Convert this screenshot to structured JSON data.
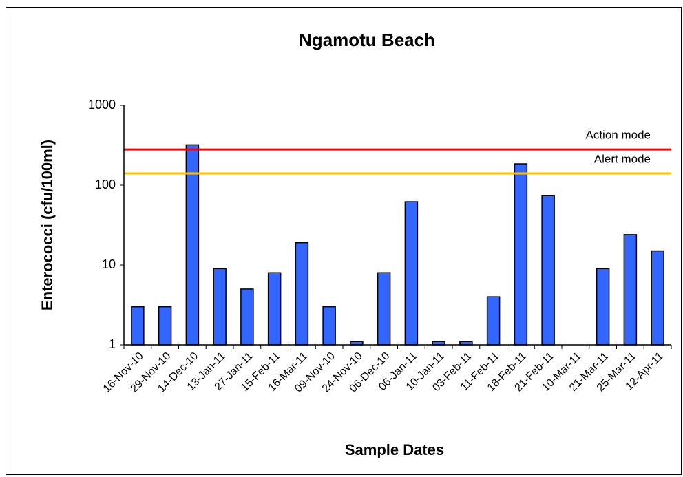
{
  "chart_data": {
    "type": "bar",
    "title": "Ngamotu Beach",
    "x_label": "Sample Dates",
    "y_label": "Enterococci (cfu/100ml)",
    "categories": [
      "16-Nov-10",
      "29-Nov-10",
      "14-Dec-10",
      "13-Jan-11",
      "27-Jan-11",
      "15-Feb-11",
      "16-Mar-11",
      "09-Nov-10",
      "24-Nov-10",
      "06-Dec-10",
      "06-Jan-11",
      "10-Jan-11",
      "03-Feb-11",
      "11-Feb-11",
      "18-Feb-11",
      "21-Feb-11",
      "10-Mar-11",
      "21-Mar-11",
      "25-Mar-11",
      "12-Apr-11"
    ],
    "values": [
      3,
      3,
      320,
      9,
      5,
      8,
      19,
      3,
      1.1,
      8,
      62,
      1.1,
      1.1,
      4,
      185,
      74,
      1,
      9,
      24,
      15
    ],
    "color": "#3366ff",
    "log_scale": true,
    "ylim": [
      1,
      1000
    ],
    "yticks": [
      1,
      10,
      100,
      1000
    ],
    "grid": false,
    "thresholds": [
      {
        "name": "Action mode",
        "value": 280,
        "color": "#ff0000"
      },
      {
        "name": "Alert mode",
        "value": 140,
        "color": "#ffc000"
      }
    ]
  }
}
